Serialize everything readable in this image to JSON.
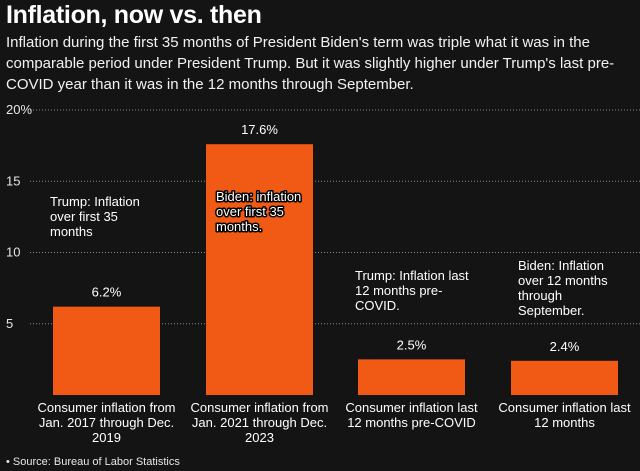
{
  "title": "Inflation, now vs. then",
  "subtitle": "Inflation during the first 35 months of President Biden's term was triple what it was in the comparable period under President Trump. But it was slightly higher under Trump's last pre-COVID year than it was in the 12 months through September.",
  "source": "• Source: Bureau of Labor Statistics",
  "colors": {
    "bar": "#f05a14",
    "background": "#141414",
    "grid": "#8a8a8a"
  },
  "chart_data": {
    "type": "bar",
    "title": "Inflation, now vs. then",
    "xlabel": "",
    "ylabel": "",
    "ylim": [
      0,
      20
    ],
    "yticks": [
      5,
      10,
      15,
      20
    ],
    "ytick_labels": [
      "5",
      "10",
      "15",
      "20%"
    ],
    "grid": true,
    "categories": [
      [
        "Consumer inflation from",
        "Jan. 2017 through Dec.",
        "2019"
      ],
      [
        "Consumer inflation from",
        "Jan. 2021 through Dec.",
        "2023"
      ],
      [
        "Consumer inflation last",
        "12 months pre-COVID"
      ],
      [
        "Consumer inflation last",
        "12 months"
      ]
    ],
    "values": [
      6.2,
      17.6,
      2.5,
      2.4
    ],
    "value_labels": [
      "6.2%",
      "17.6%",
      "2.5%",
      "2.4%"
    ],
    "annotations": [
      [
        "Trump: Inflation",
        "over first 35",
        "months"
      ],
      [
        "Biden: inflation",
        "over first 35",
        "months."
      ],
      [
        "Trump: Inflation last",
        "12 months pre-",
        "COVID."
      ],
      [
        "Biden: Inflation",
        "over 12 months",
        "through",
        "September."
      ]
    ]
  }
}
